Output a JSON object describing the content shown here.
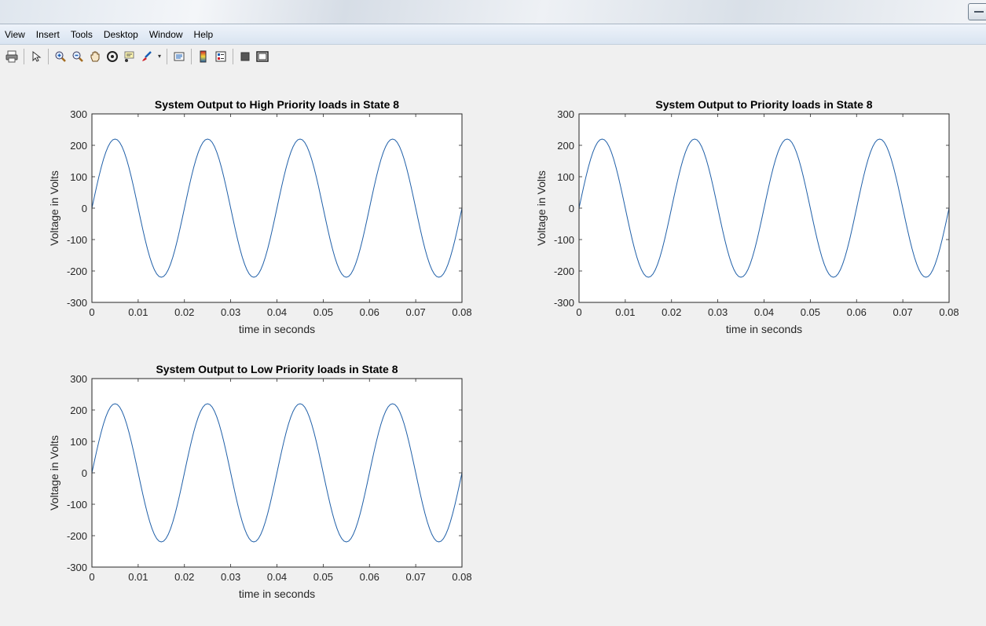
{
  "menubar": {
    "items": [
      "View",
      "Insert",
      "Tools",
      "Desktop",
      "Window",
      "Help"
    ]
  },
  "toolbar": {
    "icons": [
      "print-icon",
      "pointer-icon",
      "zoom-in-icon",
      "zoom-out-icon",
      "pan-icon",
      "rotate-3d-icon",
      "data-cursor-icon",
      "brush-icon",
      "link-plot-icon",
      "colorbar-icon",
      "legend-icon",
      "hide-plot-tools-icon",
      "show-plot-tools-icon"
    ]
  },
  "colors": {
    "line": "#1f5fa8",
    "axes_bg": "#ffffff",
    "figure_bg": "#f0f0f0"
  },
  "chart_data": [
    {
      "type": "line",
      "title": "System Output to High Priority loads in State 8",
      "xlabel": "time in seconds",
      "ylabel": "Voltage in Volts",
      "xlim": [
        0,
        0.08
      ],
      "ylim": [
        -300,
        300
      ],
      "xticks": [
        0,
        0.01,
        0.02,
        0.03,
        0.04,
        0.05,
        0.06,
        0.07,
        0.08
      ],
      "xtick_labels": [
        "0",
        "0.01",
        "0.02",
        "0.03",
        "0.04",
        "0.05",
        "0.06",
        "0.07",
        "0.08"
      ],
      "yticks": [
        300,
        200,
        100,
        0,
        -100,
        -200,
        -300
      ],
      "ytick_labels": [
        "300",
        "200",
        "100",
        "0",
        "-100",
        "-200",
        "-300"
      ],
      "series": [
        {
          "amplitude": 220,
          "frequency": 50,
          "x_start": 0,
          "x_end": 0.08
        }
      ],
      "grid": false
    },
    {
      "type": "line",
      "title": "System Output to Priority loads in State 8",
      "xlabel": "time in seconds",
      "ylabel": "Voltage in Volts",
      "xlim": [
        0,
        0.08
      ],
      "ylim": [
        -300,
        300
      ],
      "xticks": [
        0,
        0.01,
        0.02,
        0.03,
        0.04,
        0.05,
        0.06,
        0.07,
        0.08
      ],
      "xtick_labels": [
        "0",
        "0.01",
        "0.02",
        "0.03",
        "0.04",
        "0.05",
        "0.06",
        "0.07",
        "0.08"
      ],
      "yticks": [
        300,
        200,
        100,
        0,
        -100,
        -200,
        -300
      ],
      "ytick_labels": [
        "300",
        "200",
        "100",
        "0",
        "-100",
        "-200",
        "-300"
      ],
      "series": [
        {
          "amplitude": 220,
          "frequency": 50,
          "x_start": 0,
          "x_end": 0.08
        }
      ],
      "grid": false
    },
    {
      "type": "line",
      "title": "System Output to Low Priority loads in State 8",
      "xlabel": "time in seconds",
      "ylabel": "Voltage in Volts",
      "xlim": [
        0,
        0.08
      ],
      "ylim": [
        -300,
        300
      ],
      "xticks": [
        0,
        0.01,
        0.02,
        0.03,
        0.04,
        0.05,
        0.06,
        0.07,
        0.08
      ],
      "xtick_labels": [
        "0",
        "0.01",
        "0.02",
        "0.03",
        "0.04",
        "0.05",
        "0.06",
        "0.07",
        "0.08"
      ],
      "yticks": [
        300,
        200,
        100,
        0,
        -100,
        -200,
        -300
      ],
      "ytick_labels": [
        "300",
        "200",
        "100",
        "0",
        "-100",
        "-200",
        "-300"
      ],
      "series": [
        {
          "amplitude": 220,
          "frequency": 50,
          "x_start": 0,
          "x_end": 0.08
        }
      ],
      "grid": false
    }
  ]
}
